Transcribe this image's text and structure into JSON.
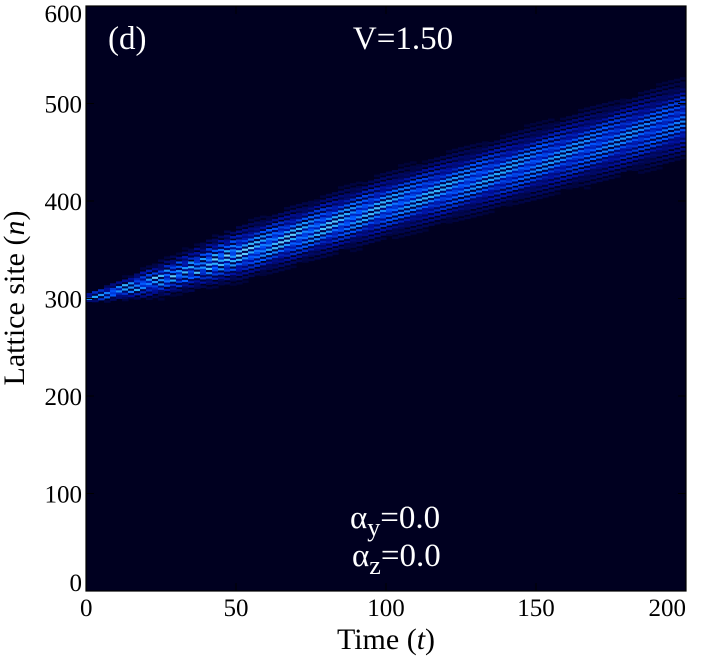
{
  "chart_data": {
    "type": "heatmap",
    "panel_label": "(d)",
    "annotation_top": "V=1.50",
    "annotation_bottom": [
      {
        "symbol": "α",
        "sub": "y",
        "value": "=0.0"
      },
      {
        "symbol": "α",
        "sub": "z",
        "value": "=0.0"
      }
    ],
    "xlabel": {
      "text": "Time (",
      "var": "t",
      "close": ")"
    },
    "ylabel": {
      "text": "Lattice site (",
      "var": "n",
      "close": ")"
    },
    "xlim": [
      0,
      200
    ],
    "ylim": [
      0,
      600
    ],
    "xticks": [
      0,
      50,
      100,
      150,
      200
    ],
    "yticks": [
      0,
      100,
      200,
      300,
      400,
      500,
      600
    ],
    "grid": false,
    "background_color": "#000020",
    "colormap": [
      "#000020",
      "#0010a0",
      "#0055ff",
      "#20a8ff",
      "#9ff4ff"
    ],
    "wavepacket": {
      "start": {
        "t": 0,
        "n": 300
      },
      "center_track": [
        {
          "t": 0,
          "n": 300
        },
        {
          "t": 25,
          "n": 320
        },
        {
          "t": 50,
          "n": 345
        },
        {
          "t": 100,
          "n": 395
        },
        {
          "t": 150,
          "n": 440
        },
        {
          "t": 200,
          "n": 485
        }
      ],
      "half_width_track": [
        {
          "t": 0,
          "n": 2
        },
        {
          "t": 25,
          "n": 12
        },
        {
          "t": 50,
          "n": 18
        },
        {
          "t": 100,
          "n": 22
        },
        {
          "t": 150,
          "n": 25
        },
        {
          "t": 200,
          "n": 28
        }
      ]
    }
  }
}
